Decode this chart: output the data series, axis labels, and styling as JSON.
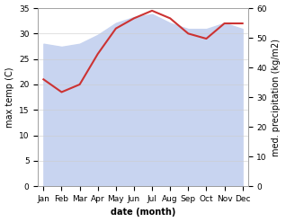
{
  "months": [
    "Jan",
    "Feb",
    "Mar",
    "Apr",
    "May",
    "Jun",
    "Jul",
    "Aug",
    "Sep",
    "Oct",
    "Nov",
    "Dec"
  ],
  "temp": [
    21,
    18.5,
    20,
    26,
    31,
    33,
    34.5,
    33,
    30,
    29,
    32,
    32
  ],
  "precip": [
    48,
    47,
    48,
    51,
    55,
    57,
    58,
    55,
    53,
    53,
    55,
    53
  ],
  "temp_ylim": [
    0,
    35
  ],
  "precip_ylim": [
    0,
    60
  ],
  "temp_color": "#cc3333",
  "precip_fill_color": "#c8d4f0",
  "xlabel": "date (month)",
  "ylabel_left": "max temp (C)",
  "ylabel_right": "med. precipitation (kg/m2)",
  "label_fontsize": 7,
  "tick_fontsize": 6.5
}
